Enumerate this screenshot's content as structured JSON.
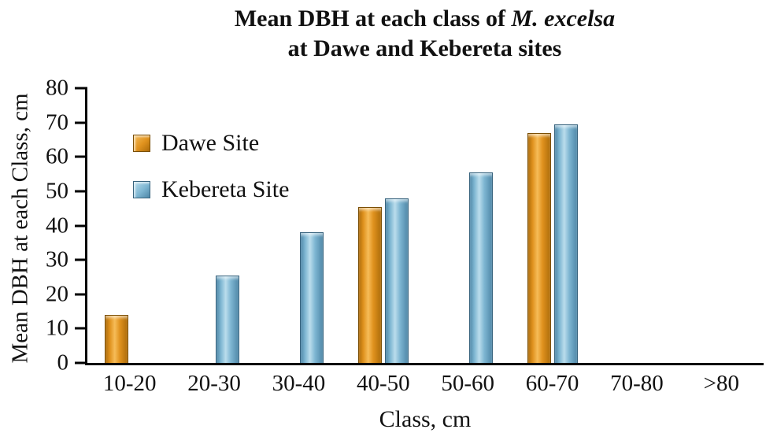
{
  "title": {
    "prefix": "Mean DBH at each class of ",
    "italic": "M. excelsa",
    "line2": "at Dawe and Kebereta sites"
  },
  "chart_data": {
    "type": "bar",
    "title": "Mean DBH at each class of M. excelsa at Dawe and Kebereta sites",
    "categories": [
      "10-20",
      "20-30",
      "30-40",
      "40-50",
      "50-60",
      "60-70",
      "70-80",
      ">80"
    ],
    "series": [
      {
        "name": "Dawe Site",
        "values": [
          14,
          0,
          0,
          45.5,
          0,
          67,
          0,
          0
        ],
        "color": "#E0921E",
        "color_light": "#F6BC58",
        "color_dark": "#AD6C0A",
        "color_border": "#7A4E05"
      },
      {
        "name": "Kebereta Site",
        "values": [
          0,
          25.5,
          38,
          48,
          55.5,
          69.5,
          0,
          0
        ],
        "color": "#7EB6D2",
        "color_light": "#BADDEC",
        "color_dark": "#4F88A8",
        "color_border": "#39647E"
      }
    ],
    "xlabel": "Class, cm",
    "ylabel": "Mean DBH at each Class, cm",
    "ylim": [
      0,
      80
    ],
    "ytick_step": 10,
    "yticks": [
      0,
      10,
      20,
      30,
      40,
      50,
      60,
      70,
      80
    ],
    "grid": false,
    "legend_position": "upper-left-inside"
  }
}
